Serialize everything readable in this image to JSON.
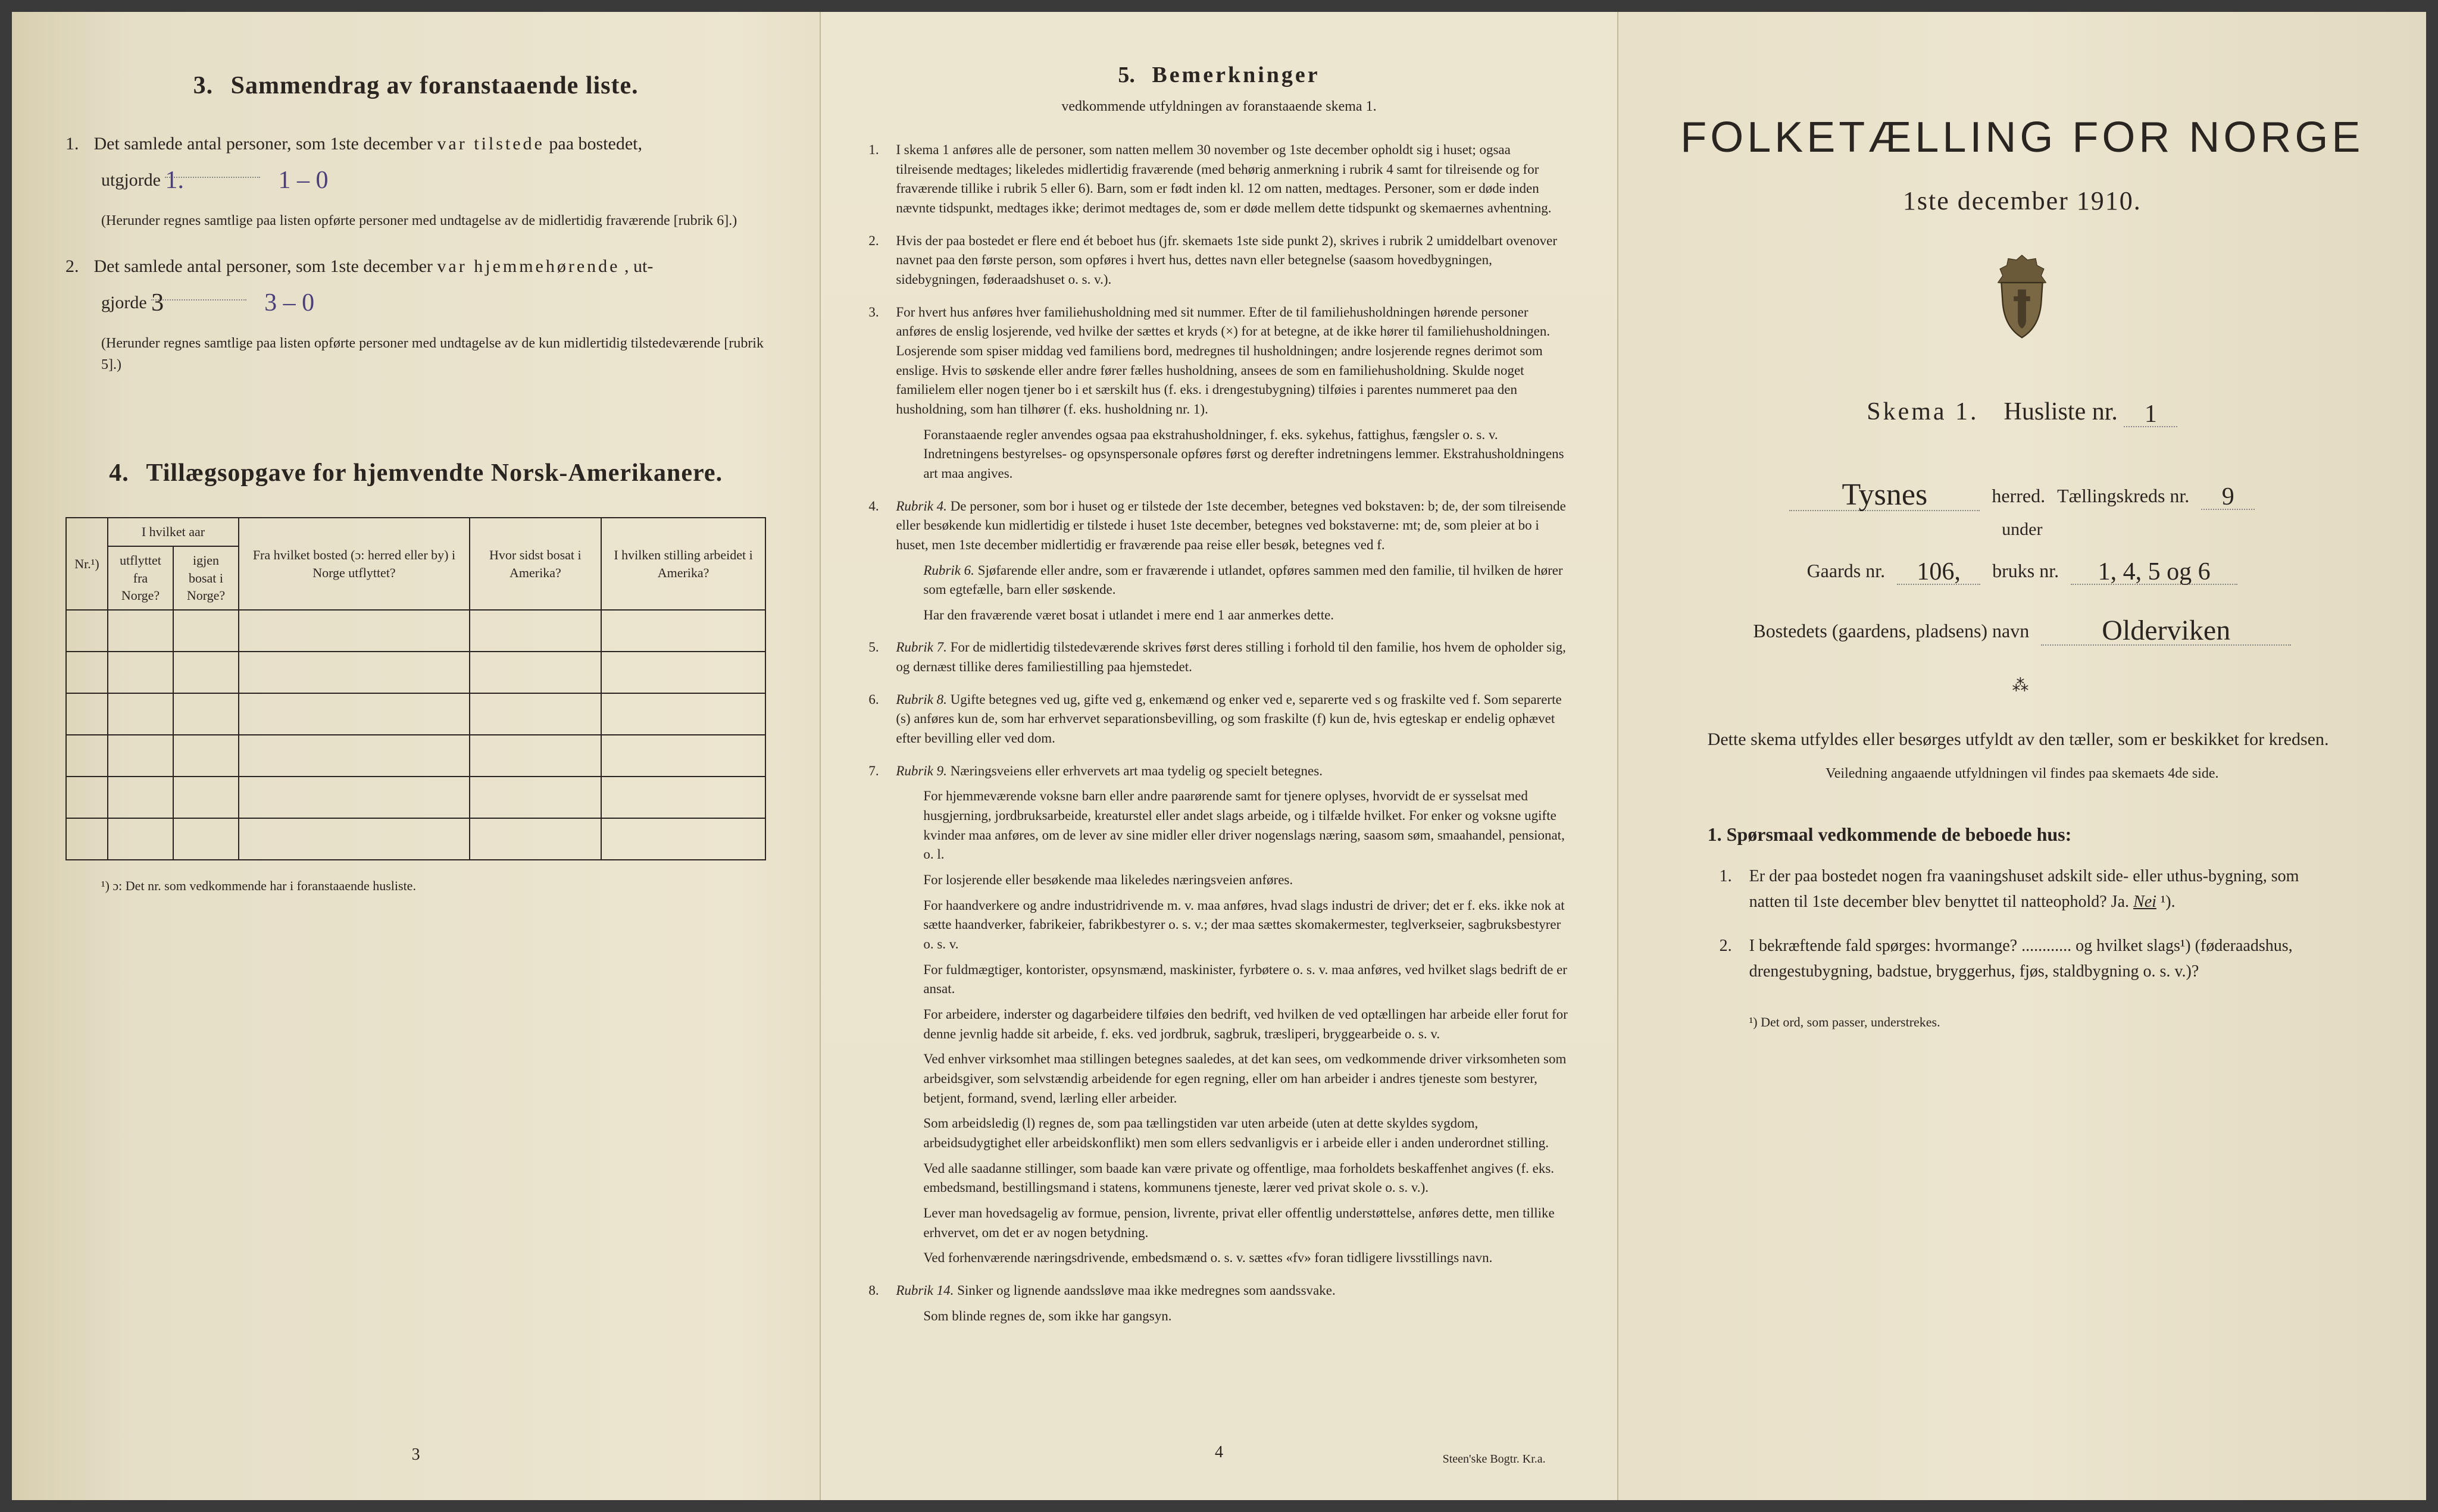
{
  "page1": {
    "section3": {
      "num": "3.",
      "title": "Sammendrag av foranstaaende liste.",
      "item1_num": "1.",
      "item1_text_a": "Det samlede antal personer, som 1ste december ",
      "item1_text_b": "var tilstede",
      "item1_text_c": " paa bostedet,",
      "item1_line2": "utgjorde",
      "item1_hand1": "1.",
      "item1_hand2": "1 – 0",
      "item1_note": "(Herunder regnes samtlige paa listen opførte personer med undtagelse av de midlertidig fraværende [rubrik 6].)",
      "item2_num": "2.",
      "item2_text_a": "Det samlede antal personer, som 1ste december ",
      "item2_text_b": "var hjemmehørende",
      "item2_text_c": ", ut-",
      "item2_line2": "gjorde",
      "item2_hand1": "3",
      "item2_hand2": "3 – 0",
      "item2_note": "(Herunder regnes samtlige paa listen opførte personer med undtagelse av de kun midlertidig tilstedeværende [rubrik 5].)"
    },
    "section4": {
      "num": "4.",
      "title": "Tillægsopgave for hjemvendte Norsk-Amerikanere.",
      "headers": {
        "nr": "Nr.¹)",
        "year_group": "I hvilket aar",
        "utflyttet": "utflyttet fra Norge?",
        "igjen": "igjen bosat i Norge?",
        "fra_bosted": "Fra hvilket bosted (ɔ: herred eller by) i Norge utflyttet?",
        "hvor_sidst": "Hvor sidst bosat i Amerika?",
        "stilling": "I hvilken stilling arbeidet i Amerika?"
      },
      "rows": 6,
      "footnote": "¹) ɔ: Det nr. som vedkommende har i foranstaaende husliste."
    },
    "pagenum": "3"
  },
  "page2": {
    "heading_num": "5.",
    "heading": "Bemerkninger",
    "subhead": "vedkommende utfyldningen av foranstaaende skema 1.",
    "items": [
      {
        "n": "1",
        "text": "I skema 1 anføres alle de personer, som natten mellem 30 november og 1ste december opholdt sig i huset; ogsaa tilreisende medtages; likeledes midlertidig fraværende (med behørig anmerkning i rubrik 4 samt for tilreisende og for fraværende tillike i rubrik 5 eller 6). Barn, som er født inden kl. 12 om natten, medtages. Personer, som er døde inden nævnte tidspunkt, medtages ikke; derimot medtages de, som er døde mellem dette tidspunkt og skemaernes avhentning."
      },
      {
        "n": "2",
        "text": "Hvis der paa bostedet er flere end ét beboet hus (jfr. skemaets 1ste side punkt 2), skrives i rubrik 2 umiddelbart ovenover navnet paa den første person, som opføres i hvert hus, dettes navn eller betegnelse (saasom hovedbygningen, sidebygningen, føderaadshuset o. s. v.)."
      },
      {
        "n": "3",
        "text": "For hvert hus anføres hver familiehusholdning med sit nummer. Efter de til familiehusholdningen hørende personer anføres de enslig losjerende, ved hvilke der sættes et kryds (×) for at betegne, at de ikke hører til familiehusholdningen. Losjerende som spiser middag ved familiens bord, medregnes til husholdningen; andre losjerende regnes derimot som enslige. Hvis to søskende eller andre fører fælles husholdning, ansees de som en familiehusholdning. Skulde noget familielem eller nogen tjener bo i et særskilt hus (f. eks. i drengestu­bygning) tilføies i parentes nummeret paa den husholdning, som han tilhører (f. eks. husholdning nr. 1).",
        "sub": "Foranstaaende regler anvendes ogsaa paa ekstrahusholdninger, f. eks. syke­hus, fattighus, fængsler o. s. v. Indretningens bestyrelses- og opsynspersonale opføres først og derefter indretningens lemmer. Ekstrahusholdningens art maa angives."
      },
      {
        "n": "4",
        "text": "Rubrik 4. De personer, som bor i huset og er tilstede der 1ste december, betegnes ved bokstaven: b; de, der som tilreisende eller besøkende kun midlertidig er tilstede i huset 1ste december, betegnes ved bokstaverne: mt; de, som pleier at bo i huset, men 1ste december midlertidig er fraværende paa reise eller besøk, betegnes ved f.",
        "sub": "Rubrik 6. Sjøfarende eller andre, som er fraværende i utlandet, opføres sammen med den familie, til hvilken de hører som egtefælle, barn eller søskende.",
        "sub2": "Har den fraværende været bosat i utlandet i mere end 1 aar anmerkes dette."
      },
      {
        "n": "5",
        "text": "Rubrik 7. For de midlertidig tilstedeværende skrives først deres stilling i forhold til den familie, hos hvem de opholder sig, og dernæst tillike deres familiestilling paa hjemstedet."
      },
      {
        "n": "6",
        "text": "Rubrik 8. Ugifte betegnes ved ug, gifte ved g, enkemænd og enker ved e, separerte ved s og fraskilte ved f. Som separerte (s) anføres kun de, som har erhvervet separations­bevilling, og som fraskilte (f) kun de, hvis egteskap er endelig ophævet efter bevilling eller ved dom."
      },
      {
        "n": "7",
        "text": "Rubrik 9. Næringsveiens eller erhvervets art maa tydelig og specielt betegnes.",
        "extras": [
          "For hjemmeværende voksne barn eller andre paarørende samt for tjenere oplyses, hvor­vidt de er sysselsat med husgjerning, jordbruksarbeide, kreaturstel eller andet slags arbeide, og i tilfælde hvilket. For enker og voksne ugifte kvinder maa anføres, om de lever av sine midler eller driver nogenslags næring, saasom søm, smaahandel, pensionat, o. l.",
          "For losjerende eller besøkende maa likeledes næringsveien anføres.",
          "For haandverkere og andre industridrivende m. v. maa anføres, hvad slags industri de driver; det er f. eks. ikke nok at sætte haandverker, fabrikeier, fabrikbestyrer o. s. v.; der maa sættes skomakermester, teglverkseier, sagbruksbestyrer o. s. v.",
          "For fuldmægtiger, kontorister, opsynsmænd, maskinister, fyrbøtere o. s. v. maa anføres, ved hvilket slags bedrift de er ansat.",
          "For arbeidere, inderster og dagarbeidere tilføies den bedrift, ved hvilken de ved op­tællingen har arbeide eller forut for denne jevnlig hadde sit arbeide, f. eks. ved jordbruk, sagbruk, træsliperi, bryggearbeide o. s. v.",
          "Ved enhver virksomhet maa stillingen betegnes saaledes, at det kan sees, om ved­kommende driver virksomheten som arbeidsgiver, som selvstændig arbeidende for egen regning, eller om han arbeider i andres tjeneste som bestyrer, betjent, formand, svend, lærling eller arbeider.",
          "Som arbeidsledig (l) regnes de, som paa tællingstiden var uten arbeide (uten at dette skyldes sygdom, arbeidsudygtighet eller arbeidskonflikt) men som ellers sedvanligvis er i arbeide eller i anden underordnet stilling.",
          "Ved alle saadanne stillinger, som baade kan være private og offentlige, maa for­holdets beskaffenhet angives (f. eks. embedsmand, bestillingsmand i statens, kommunens tjeneste, lærer ved privat skole o. s. v.).",
          "Lever man hovedsagelig av formue, pension, livrente, privat eller offentlig under­støttelse, anføres dette, men tillike erhvervet, om det er av nogen betydning.",
          "Ved forhenværende næringsdrivende, embedsmænd o. s. v. sættes «fv» foran tidligere livsstillings navn."
        ]
      },
      {
        "n": "8",
        "text": "Rubrik 14. Sinker og lignende aandssløve maa ikke medregnes som aandssvake.",
        "sub": "Som blinde regnes de, som ikke har gangsyn."
      }
    ],
    "pagenum": "4",
    "printer": "Steen'ske Bogtr. Kr.a."
  },
  "page3": {
    "title": "FOLKETÆLLING FOR NORGE",
    "date": "1ste december 1910.",
    "skema_a": "Skema 1.",
    "skema_b": "Husliste nr.",
    "skema_val": "1",
    "herred_val": "Tysnes",
    "herred_under": "under",
    "herred_label": "herred.",
    "kreds_label": "Tællingskreds nr.",
    "kreds_val": "9",
    "gaards_label": "Gaards nr.",
    "gaards_val": "106,",
    "bruks_label": "bruks nr.",
    "bruks_val": "1, 4, 5 og 6",
    "bosted_label": "Bostedets (gaardens, pladsens) navn",
    "bosted_val": "Olderviken",
    "instr": "Dette skema utfyldes eller besørges utfyldt av den tæller, som er beskikket for kredsen.",
    "instr_sub": "Veiledning angaaende utfyldningen vil findes paa skemaets 4de side.",
    "q_head": "1. Spørsmaal vedkommende de beboede hus:",
    "q1_num": "1.",
    "q1": "Er der paa bostedet nogen fra vaaningshuset adskilt side- eller uthus-bygning, som natten til 1ste december blev benyttet til natteophold?   Ja.   Nei ¹).",
    "q2_num": "2.",
    "q2": "I bekræftende fald spørges: hvormange? ............ og hvilket slags¹) (føderaadshus, drengestubygning, badstue, bryggerhus, fjøs, stald­bygning o. s. v.)?",
    "foot": "¹) Det ord, som passer, understrekes."
  }
}
